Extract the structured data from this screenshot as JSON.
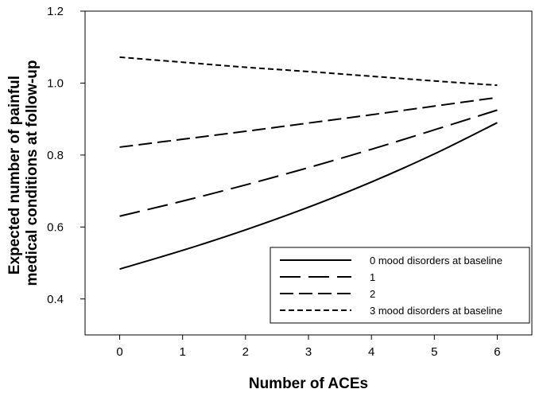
{
  "chart_data": {
    "type": "line",
    "title": "",
    "xlabel": "Number of ACEs",
    "ylabel": "Expected number of painful medical conditions at follow-up",
    "ylabel_lines": [
      "Expected number of painful",
      "medical conditions at follow-up"
    ],
    "xlim": [
      -0.55,
      6.55
    ],
    "ylim": [
      0.3,
      1.2
    ],
    "xticks": [
      0,
      1,
      2,
      3,
      4,
      5,
      6
    ],
    "yticks": [
      0.4,
      0.6,
      0.8,
      1.0,
      1.2
    ],
    "ytick_labels": [
      "0.4",
      "0.6",
      "0.8",
      "1.0",
      "1.2"
    ],
    "grid": false,
    "legend_position": "bottom-right",
    "x": [
      0,
      1,
      2,
      3,
      4,
      5,
      6
    ],
    "series": [
      {
        "name": "0 mood disorders at baseline",
        "style": "solid",
        "values": [
          0.483,
          0.535,
          0.592,
          0.655,
          0.725,
          0.803,
          0.89
        ]
      },
      {
        "name": "1",
        "style": "long-dash",
        "values": [
          0.63,
          0.672,
          0.717,
          0.765,
          0.816,
          0.87,
          0.925
        ]
      },
      {
        "name": "2",
        "style": "medium-dash",
        "values": [
          0.822,
          0.844,
          0.866,
          0.889,
          0.912,
          0.936,
          0.96
        ]
      },
      {
        "name": "3 mood disorders at baseline",
        "style": "short-dash",
        "values": [
          1.072,
          1.058,
          1.044,
          1.032,
          1.019,
          1.006,
          0.994
        ]
      }
    ],
    "colors": {
      "lines": "#000000",
      "axes": "#000000",
      "background": "#ffffff"
    }
  }
}
